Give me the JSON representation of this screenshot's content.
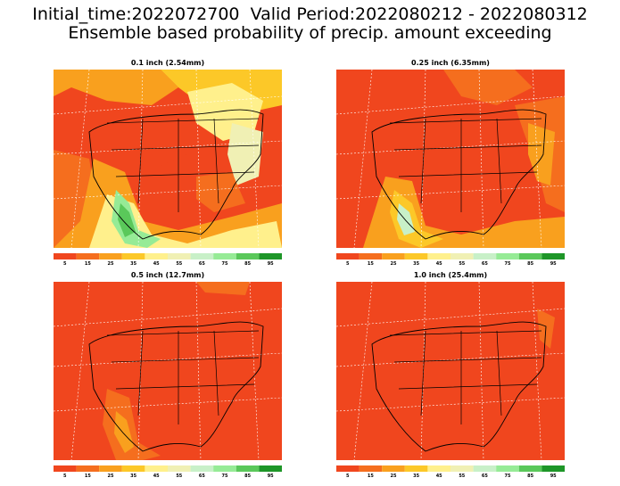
{
  "header": {
    "line1": "Initial_time:2022072700  Valid Period:2022080212 - 2022080312",
    "line2": "Ensemble based probability of precip. amount exceeding"
  },
  "panels": [
    {
      "title": "0.1 inch (2.54mm)"
    },
    {
      "title": "0.25 inch (6.35mm)"
    },
    {
      "title": "0.5 inch (12.7mm)"
    },
    {
      "title": "1.0 inch (25.4mm)"
    }
  ],
  "colorbar": {
    "colors": [
      "#f0461e",
      "#f56e1e",
      "#f9a01e",
      "#fcc828",
      "#fff08c",
      "#f0f0b4",
      "#c8f0c8",
      "#96eb96",
      "#5ac85a",
      "#1e9628"
    ],
    "labels": [
      "5",
      "15",
      "25",
      "35",
      "45",
      "55",
      "65",
      "75",
      "85",
      "95"
    ]
  },
  "palette": {
    "background": "#f0461e",
    "coast": "#000000",
    "grid": "#ffffff"
  }
}
